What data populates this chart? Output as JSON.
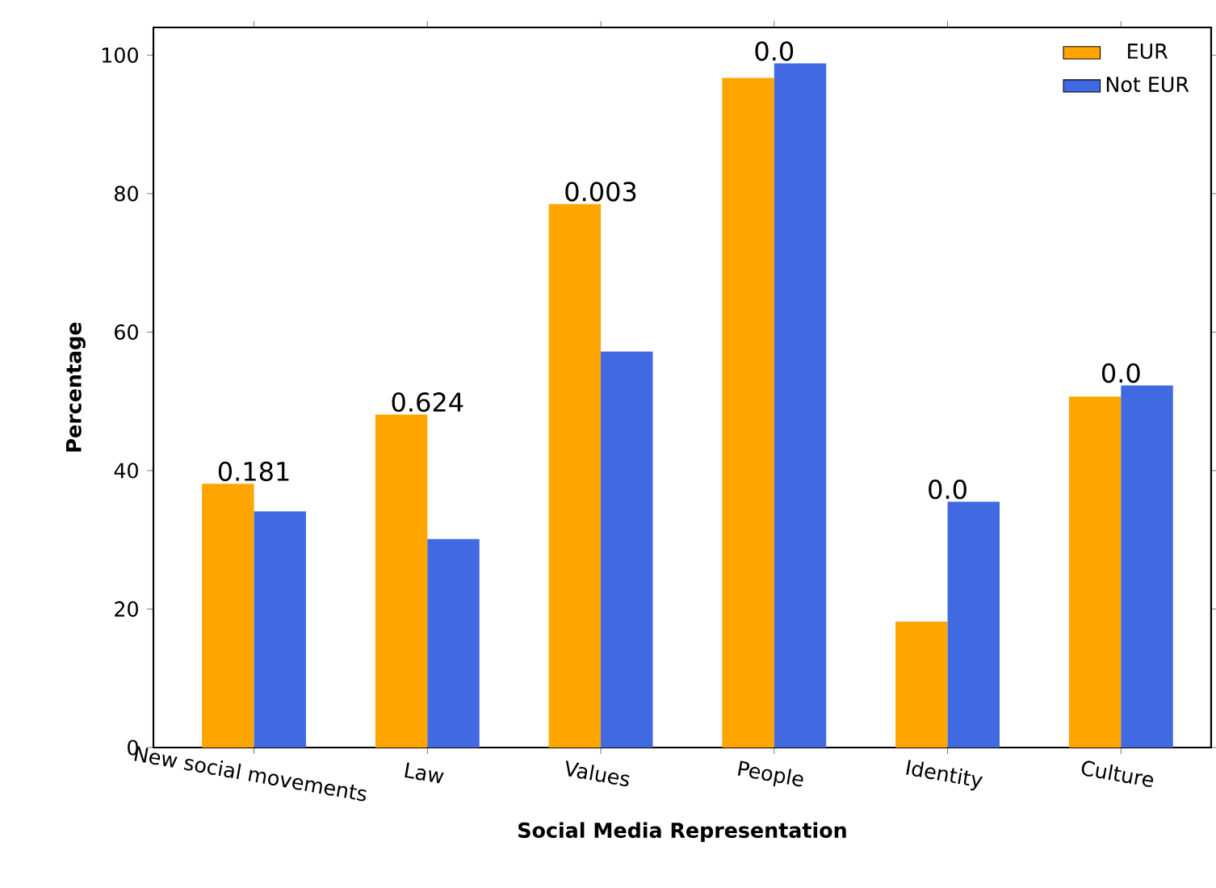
{
  "chart_data": {
    "type": "bar",
    "xlabel": "Social Media Representation",
    "ylabel": "Percentage",
    "categories": [
      "New social movements",
      "Law",
      "Values",
      "People",
      "Identity",
      "Culture"
    ],
    "series": [
      {
        "name": "EUR",
        "color": "#ffa500",
        "values": [
          38.1,
          48.1,
          78.5,
          96.7,
          18.2,
          50.7
        ]
      },
      {
        "name": "Not EUR",
        "color": "#4169e1",
        "values": [
          34.1,
          30.1,
          57.2,
          98.8,
          35.5,
          52.3
        ]
      }
    ],
    "ylim": [
      0,
      104
    ],
    "yticks": [
      0,
      20,
      40,
      60,
      80,
      100
    ],
    "legend": "top right",
    "annotations": [
      {
        "text": "0.181",
        "x": "New social movements",
        "y": 38.1
      },
      {
        "text": "0.624",
        "x": "Law",
        "y": 48.1
      },
      {
        "text": "0.003",
        "x": "Values",
        "y": 78.5
      },
      {
        "text": "0.0",
        "x": "People",
        "y": 98.8
      },
      {
        "text": "0.0",
        "x": "Identity",
        "y": 35.5
      },
      {
        "text": "0.0",
        "x": "Culture",
        "y": 52.3
      }
    ]
  }
}
